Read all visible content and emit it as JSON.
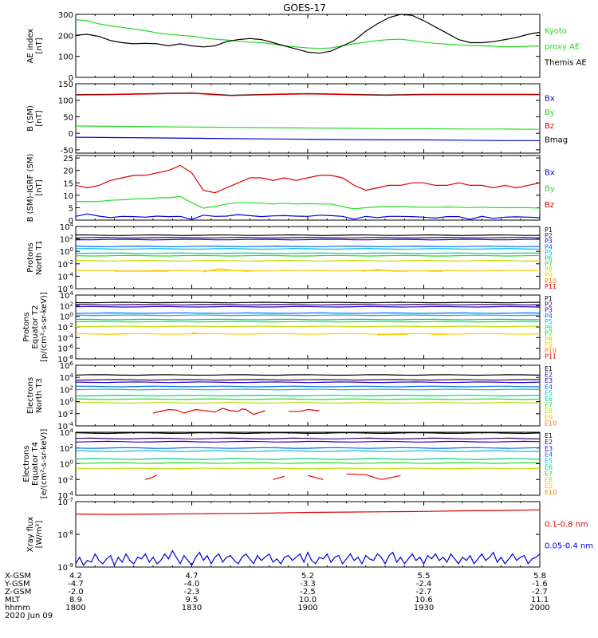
{
  "title": "GOES-17",
  "date": "2020 Jun 09",
  "colors": {
    "black": "#000000",
    "red": "#dd0000",
    "green": "#22dd22",
    "blue": "#0000dd",
    "p": [
      "#000000",
      "#330066",
      "#2200cc",
      "#0066ff",
      "#00bbdd",
      "#00cc88",
      "#22dd22",
      "#bbdd00",
      "#ffcc00",
      "#ff7700",
      "#ee0000",
      "#cc0000"
    ]
  },
  "chart_data": [
    {
      "type": "line",
      "id": "ae",
      "ylabel": [
        "AE index",
        "[nT]"
      ],
      "ylim": [
        0,
        300
      ],
      "yticks": [
        "0",
        "100",
        "200",
        "300"
      ],
      "legend": [
        {
          "label": "Kyoto",
          "color": "green"
        },
        {
          "label": "proxy AE",
          "color": "green"
        },
        {
          "label": "Themis AE",
          "color": "black"
        }
      ],
      "x": [
        0,
        3,
        6,
        9,
        12,
        15,
        18,
        21,
        24,
        27,
        30,
        33,
        36,
        39,
        42,
        45,
        48,
        51,
        54,
        57,
        60,
        63,
        66,
        69,
        72,
        75,
        78,
        81,
        84,
        87,
        90,
        93,
        96,
        99,
        102,
        105,
        108,
        111,
        114,
        117,
        120
      ],
      "series": [
        {
          "name": "Kyoto proxy AE",
          "color": "green",
          "values": [
            275,
            270,
            255,
            245,
            238,
            230,
            222,
            212,
            205,
            200,
            196,
            188,
            182,
            178,
            172,
            168,
            165,
            158,
            150,
            145,
            140,
            138,
            140,
            150,
            160,
            168,
            175,
            180,
            182,
            175,
            168,
            162,
            158,
            155,
            152,
            150,
            148,
            146,
            146,
            148,
            150
          ]
        },
        {
          "name": "Themis AE",
          "color": "black",
          "values": [
            200,
            205,
            195,
            175,
            165,
            160,
            162,
            160,
            150,
            160,
            150,
            145,
            150,
            170,
            180,
            185,
            180,
            165,
            150,
            135,
            120,
            115,
            125,
            150,
            175,
            220,
            255,
            285,
            300,
            295,
            270,
            240,
            210,
            180,
            165,
            165,
            170,
            180,
            190,
            205,
            215
          ]
        }
      ]
    },
    {
      "type": "line",
      "id": "bsm",
      "ylabel": [
        "B (SM)",
        "[nT]"
      ],
      "ylim": [
        -60,
        150
      ],
      "yticks": [
        "-50",
        "0",
        "50",
        "100",
        "150"
      ],
      "legend": [
        {
          "label": "Bx",
          "color": "blue"
        },
        {
          "label": "By",
          "color": "green"
        },
        {
          "label": "Bz",
          "color": "red"
        },
        {
          "label": "Bmag",
          "color": "black"
        }
      ],
      "x": [
        0,
        10,
        20,
        30,
        40,
        50,
        60,
        70,
        80,
        90,
        100,
        110,
        120
      ],
      "series": [
        {
          "name": "Bmag",
          "color": "black",
          "values": [
            117,
            118,
            120,
            122,
            115,
            118,
            120,
            118,
            116,
            118,
            118,
            118,
            118
          ]
        },
        {
          "name": "Bz",
          "color": "red",
          "values": [
            116,
            117,
            119,
            121,
            114,
            117,
            119,
            117,
            115,
            117,
            117,
            117,
            117
          ]
        },
        {
          "name": "By",
          "color": "green",
          "values": [
            22,
            21,
            20,
            19,
            18,
            17,
            16,
            15,
            14,
            14,
            13,
            13,
            12
          ]
        },
        {
          "name": "Bx",
          "color": "blue",
          "values": [
            -12,
            -13,
            -14,
            -15,
            -16,
            -17,
            -18,
            -19,
            -20,
            -20,
            -21,
            -22,
            -22
          ]
        }
      ]
    },
    {
      "type": "line",
      "id": "bdiff",
      "ylabel": [
        "B (SM)-IGRF (SM)",
        "[nT]"
      ],
      "ylim": [
        0,
        26
      ],
      "yticks": [
        "0",
        "5",
        "10",
        "15",
        "20",
        "25"
      ],
      "legend": [
        {
          "label": "Bx",
          "color": "blue"
        },
        {
          "label": "By",
          "color": "green"
        },
        {
          "label": "Bz",
          "color": "red"
        }
      ],
      "x": [
        0,
        3,
        6,
        9,
        12,
        15,
        18,
        21,
        24,
        27,
        30,
        33,
        36,
        39,
        42,
        45,
        48,
        51,
        54,
        57,
        60,
        63,
        66,
        69,
        72,
        75,
        78,
        81,
        84,
        87,
        90,
        93,
        96,
        99,
        102,
        105,
        108,
        111,
        114,
        117,
        120
      ],
      "series": [
        {
          "name": "Bz",
          "color": "red",
          "values": [
            14,
            13,
            14,
            16,
            17,
            18,
            18,
            19,
            20,
            22,
            19,
            12,
            11,
            13,
            15,
            17,
            17,
            16,
            17,
            16,
            17,
            18,
            18,
            17,
            14,
            12,
            13,
            14,
            14,
            15,
            15,
            14,
            14,
            15,
            14,
            14,
            13,
            14,
            13,
            14,
            15
          ]
        },
        {
          "name": "By",
          "color": "green",
          "values": [
            7.5,
            7.4,
            7.5,
            8,
            8.2,
            8.5,
            8.6,
            9,
            9,
            9.5,
            7,
            4.8,
            5.5,
            6.5,
            7,
            7,
            6.8,
            6.5,
            6.8,
            6.5,
            6.6,
            6.5,
            6.5,
            5.5,
            4.5,
            5,
            5.3,
            5.5,
            5.5,
            5.3,
            5.2,
            5.2,
            5.3,
            5.2,
            5,
            5.2,
            5,
            5,
            5,
            5,
            4.8
          ]
        },
        {
          "name": "Bx",
          "color": "blue",
          "values": [
            1.5,
            2.5,
            1.6,
            1,
            1.5,
            1.4,
            1.2,
            1.6,
            1.4,
            1.5,
            0.3,
            2,
            1.5,
            1.6,
            2.2,
            1.8,
            1.4,
            1.7,
            1.8,
            1.6,
            1.5,
            2,
            1.8,
            1.5,
            0.4,
            1.5,
            1,
            1.5,
            1.5,
            1.4,
            1.2,
            0.8,
            1.4,
            1.4,
            0.3,
            1.5,
            0.7,
            1.2,
            1.3,
            1.2,
            1
          ]
        }
      ]
    },
    {
      "type": "line",
      "id": "protN",
      "ylabel": [
        "Protons",
        "North T1"
      ],
      "ylim": [
        -6,
        4
      ],
      "yscale": "log",
      "yticks": [
        "10^-6",
        "10^-4",
        "10^-2",
        "10^0",
        "10^2",
        "10^4"
      ],
      "legend": [
        "P1",
        "P2",
        "P3",
        "P4",
        "P5",
        "P6",
        "P7",
        "P8",
        "P9",
        "P10",
        "P11"
      ],
      "levels": [
        2.6,
        2.2,
        1.9,
        0.8,
        0.4,
        -0.3,
        -0.7,
        -1.5,
        -3.1
      ],
      "p9": {
        "x": [
          10,
          12,
          14,
          16,
          18,
          20,
          22,
          24,
          33,
          37,
          40,
          44,
          48,
          54,
          74,
          78,
          82,
          86,
          91,
          95
        ],
        "values": [
          -3.2,
          -3.2,
          -3.2,
          -3.2,
          -3.2,
          -3.2,
          -3.2,
          -3.2,
          -3.3,
          -2.8,
          -3.0,
          -3.2,
          -3.1,
          -3.0,
          -3.2,
          -2.9,
          -3.2,
          -3.2,
          -3.2,
          -3.2
        ]
      }
    },
    {
      "type": "line",
      "id": "protE",
      "ylabel": [
        "Protons",
        "Equator T2",
        "[p/(cm²-s-sr-keV)]"
      ],
      "ylim": [
        -8,
        4
      ],
      "yscale": "log",
      "yticks": [
        "10^-8",
        "10^-6",
        "10^-4",
        "10^-2",
        "10^0",
        "10^2",
        "10^4"
      ],
      "legend": [
        "P1",
        "P2",
        "P3",
        "P4",
        "P5",
        "P6",
        "P7",
        "P8",
        "P9",
        "P10",
        "P11"
      ],
      "levels": [
        2.6,
        2.2,
        1.8,
        0.6,
        0.2,
        -0.6,
        -1.0,
        -1.9,
        -3.3
      ],
      "p9": {
        "x": [
          5,
          9,
          13,
          30,
          34,
          40,
          78,
          82,
          86,
          92,
          96
        ],
        "values": [
          -3.3,
          -3.4,
          -3.3,
          -3.1,
          -3.3,
          -3.4,
          -3.5,
          -3.4,
          -3.4,
          -3.4,
          -3.4
        ]
      }
    },
    {
      "type": "line",
      "id": "elecN",
      "ylabel": [
        "Electrons",
        "North T3"
      ],
      "ylim": [
        -4,
        6
      ],
      "yscale": "log",
      "yticks": [
        "10^-4",
        "10^-2",
        "10^0",
        "10^2",
        "10^4",
        "10^6"
      ],
      "legend": [
        "E1",
        "E2",
        "E3",
        "E4",
        "E5",
        "E6",
        "E7",
        "E8",
        "E9",
        "E10"
      ],
      "levels": [
        4.4,
        3.6,
        3.2,
        2.5,
        2.0,
        1.0,
        0.4,
        -0.2
      ],
      "e9": {
        "x": [
          20,
          24,
          26,
          28,
          31,
          36,
          38,
          40,
          42,
          43,
          44,
          46,
          49,
          55,
          58,
          60,
          63
        ],
        "values": [
          -1.9,
          -1.3,
          -1.4,
          -1.9,
          -1.3,
          -1.7,
          -1.1,
          -1.5,
          -1.6,
          -1.2,
          -1.3,
          -2.1,
          -1.5,
          -1.6,
          -1.6,
          -1.3,
          -1.5
        ]
      }
    },
    {
      "type": "line",
      "id": "elecE",
      "ylabel": [
        "Electrons",
        "Equator T4",
        "[e/(cm²-s-sr-keV)]"
      ],
      "ylim": [
        -4,
        4
      ],
      "yscale": "log",
      "yticks": [
        "10^-4",
        "10^-2",
        "10^0",
        "10^2",
        "10^4"
      ],
      "legend": [
        "E1",
        "E2",
        "E3",
        "E4",
        "E5",
        "E6",
        "E7",
        "E8",
        "E9",
        "E10"
      ],
      "levels": [
        3.9,
        3.2,
        2.8,
        2.0,
        1.6,
        0.6,
        0.1,
        -0.6
      ],
      "e9": {
        "x": [
          18,
          20,
          21,
          51,
          54,
          60,
          64,
          70,
          75,
          79,
          84
        ],
        "values": [
          -2.0,
          -1.7,
          -1.4,
          -2.0,
          -1.6,
          -1.5,
          -2.0,
          -1.3,
          -1.4,
          -2.0,
          -1.5
        ]
      }
    },
    {
      "type": "line",
      "id": "xray",
      "ylabel": [
        "Xray flux",
        "[W/m²]"
      ],
      "ylim": [
        -9,
        -7
      ],
      "yscale": "log",
      "yticks": [
        "10^-9",
        "10^-8",
        "10^-7"
      ],
      "legend": [
        {
          "label": "0.1-0.8 nm",
          "color": "red"
        },
        {
          "label": "0.05-0.4 nm",
          "color": "blue"
        }
      ],
      "long": {
        "x": [
          0,
          10,
          20,
          30,
          40,
          50,
          60,
          70,
          80,
          90,
          100,
          110,
          120
        ],
        "values": [
          -7.38,
          -7.39,
          -7.38,
          -7.37,
          -7.36,
          -7.35,
          -7.33,
          -7.32,
          -7.31,
          -7.3,
          -7.28,
          -7.27,
          -7.25
        ]
      },
      "short_values": [
        -8.9,
        -8.7,
        -8.95,
        -8.8,
        -8.85,
        -8.6,
        -8.8,
        -8.9,
        -8.75,
        -8.65,
        -8.95,
        -8.7,
        -8.85,
        -8.6,
        -8.8,
        -8.9,
        -8.7,
        -8.75,
        -8.6,
        -8.85,
        -8.7,
        -8.9,
        -8.8,
        -8.6,
        -8.75,
        -8.5,
        -8.7,
        -8.9,
        -8.65,
        -8.8,
        -8.95,
        -8.7,
        -8.55,
        -8.8,
        -8.65,
        -8.9,
        -8.7,
        -8.6,
        -8.85,
        -8.7,
        -8.65,
        -8.8,
        -8.9,
        -8.7,
        -8.6,
        -8.75,
        -8.9,
        -8.65,
        -8.8,
        -8.7,
        -8.6,
        -8.85,
        -8.75,
        -8.9,
        -8.7,
        -8.65,
        -8.8,
        -8.7,
        -8.6,
        -8.85,
        -8.55,
        -8.8,
        -8.9,
        -8.7,
        -8.75,
        -8.6,
        -8.85,
        -8.7,
        -8.65,
        -8.9,
        -8.75,
        -8.6,
        -8.8,
        -8.7,
        -8.9,
        -8.65,
        -8.75,
        -8.8,
        -8.6,
        -8.7,
        -8.9,
        -8.65,
        -8.55,
        -8.85,
        -8.7,
        -8.9,
        -8.75,
        -8.6,
        -8.8,
        -8.7,
        -8.9,
        -8.65,
        -8.75,
        -8.6,
        -8.8,
        -8.7,
        -8.85,
        -8.6,
        -8.75,
        -8.9,
        -8.7,
        -8.8,
        -8.65,
        -8.9,
        -8.75,
        -8.6,
        -8.8,
        -8.7,
        -8.55,
        -8.85,
        -8.7,
        -8.9,
        -8.75,
        -8.6,
        -8.8,
        -8.7,
        -8.65,
        -8.9,
        -8.75,
        -8.7,
        -8.6
      ]
    }
  ],
  "x_axis": {
    "rows": [
      "X-GSM",
      "Y-GSM",
      "Z-GSM",
      "MLT",
      "hhmm"
    ],
    "ticks": [
      {
        "x": 0,
        "vals": [
          "4.2",
          "-4.7",
          "-2.0",
          "8.9",
          "1800"
        ]
      },
      {
        "x": 30,
        "vals": [
          "4.7",
          "-4.0",
          "-2.3",
          "9.5",
          "1830"
        ]
      },
      {
        "x": 60,
        "vals": [
          "5.2",
          "-3.3",
          "-2.5",
          "10.0",
          "1900"
        ]
      },
      {
        "x": 90,
        "vals": [
          "5.5",
          "-2.4",
          "-2.7",
          "10.6",
          "1930"
        ]
      },
      {
        "x": 120,
        "vals": [
          "5.8",
          "-1.6",
          "-2.7",
          "11.1",
          "2000"
        ]
      }
    ]
  }
}
